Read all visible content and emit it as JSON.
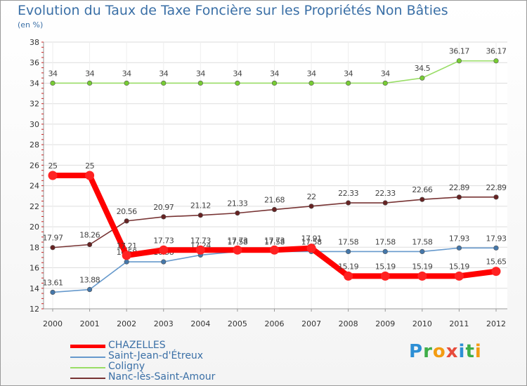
{
  "header": {
    "title": "Evolution du Taux de Taxe Foncière sur les Propriétés Non Bâties",
    "unit": "(en %)"
  },
  "logo": {
    "text": "Proxiti",
    "letters": [
      "P",
      "r",
      "o",
      "x",
      "i",
      "t",
      "i"
    ],
    "colors": [
      "#2d8fd5",
      "#3fae49",
      "#f39c12",
      "#e74c3c",
      "#2d8fd5",
      "#3fae49",
      "#f39c12"
    ]
  },
  "chart_data": {
    "type": "line",
    "title": "Evolution du Taux de Taxe Foncière sur les Propriétés Non Bâties",
    "ylabel": "(en %)",
    "xlabel": "",
    "ylim": [
      12,
      38
    ],
    "yticks": [
      12,
      14,
      16,
      18,
      20,
      22,
      24,
      26,
      28,
      30,
      32,
      34,
      36,
      38
    ],
    "x": [
      "2000",
      "2001",
      "2002",
      "2003",
      "2004",
      "2005",
      "2006",
      "2007",
      "2008",
      "2009",
      "2010",
      "2011",
      "2012"
    ],
    "grid": "horizontal",
    "series": [
      {
        "name": "Coligny",
        "color": "#99dd66",
        "marker": "#77cc33",
        "values": [
          34,
          34,
          34,
          34,
          34,
          34,
          34,
          34,
          34,
          34,
          34.5,
          36.17,
          36.17
        ],
        "labels": [
          "34",
          "34",
          "34",
          "34",
          "34",
          "34",
          "34",
          "34",
          "34",
          "34",
          "34.5",
          "36.17",
          "36.17"
        ]
      },
      {
        "name": "Nanc-lès-Saint-Amour",
        "color": "#773333",
        "marker": "#662222",
        "values": [
          17.97,
          18.26,
          20.56,
          20.97,
          21.12,
          21.33,
          21.68,
          22,
          22.33,
          22.33,
          22.66,
          22.89,
          22.89
        ],
        "labels": [
          "17.97",
          "18.26",
          "20.56",
          "20.97",
          "21.12",
          "21.33",
          "21.68",
          "22",
          "22.33",
          "22.33",
          "22.66",
          "22.89",
          "22.89"
        ]
      },
      {
        "name": "Saint-Jean-d'Étreux",
        "color": "#6699cc",
        "marker": "#4477aa",
        "values": [
          13.61,
          13.88,
          16.58,
          16.58,
          17.24,
          17.58,
          17.58,
          17.58,
          17.58,
          17.58,
          17.58,
          17.93,
          17.93
        ],
        "labels": [
          "13.61",
          "13.88",
          "16.58",
          "16.58",
          "17.24",
          "17.58",
          "17.58",
          "17.58",
          "17.58",
          "17.58",
          "17.58",
          "17.93",
          "17.93"
        ]
      },
      {
        "name": "CHAZELLES",
        "color": "#ff0000",
        "marker": "#ff2222",
        "values": [
          25,
          25,
          17.21,
          17.73,
          17.73,
          17.73,
          17.73,
          17.91,
          15.19,
          15.19,
          15.19,
          15.19,
          15.65
        ],
        "labels": [
          "25",
          "25",
          "17.21",
          "17.73",
          "17.73",
          "17.73",
          "17.73",
          "17.91",
          "15.19",
          "15.19",
          "15.19",
          "15.19",
          "15.65"
        ]
      }
    ],
    "legend": [
      {
        "name": "CHAZELLES",
        "color": "#ff0000"
      },
      {
        "name": "Saint-Jean-d'Étreux",
        "color": "#6699cc"
      },
      {
        "name": "Coligny",
        "color": "#99dd66"
      },
      {
        "name": "Nanc-lès-Saint-Amour",
        "color": "#773333"
      }
    ],
    "legend_position": "bottom-left"
  }
}
